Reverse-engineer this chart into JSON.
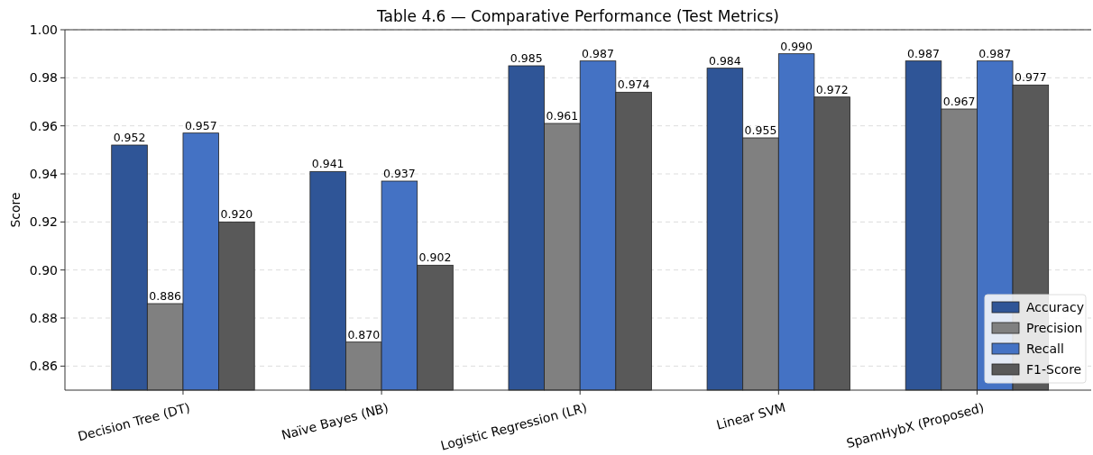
{
  "chart_data": {
    "type": "bar",
    "title": "Table 4.6 — Comparative Performance (Test Metrics)",
    "ylabel": "Score",
    "categories": [
      "Decision Tree (DT)",
      "Naïve Bayes (NB)",
      "Logistic Regression (LR)",
      "Linear SVM",
      "SpamHybX (Proposed)"
    ],
    "series": [
      {
        "name": "Accuracy",
        "color": "#2f5597",
        "values": [
          0.952,
          0.941,
          0.985,
          0.984,
          0.987
        ],
        "value_labels": [
          "0.952",
          "0.941",
          "0.985",
          "0.984",
          "0.987"
        ]
      },
      {
        "name": "Precision",
        "color": "#808080",
        "values": [
          0.886,
          0.87,
          0.961,
          0.955,
          0.967
        ],
        "value_labels": [
          "0.886",
          "0.870",
          "0.961",
          "0.955",
          "0.967"
        ]
      },
      {
        "name": "Recall",
        "color": "#4472c4",
        "values": [
          0.957,
          0.937,
          0.987,
          0.99,
          0.987
        ],
        "value_labels": [
          "0.957",
          "0.937",
          "0.987",
          "0.990",
          "0.987"
        ]
      },
      {
        "name": "F1-Score",
        "color": "#595959",
        "values": [
          0.92,
          0.902,
          0.974,
          0.972,
          0.977
        ],
        "value_labels": [
          "0.920",
          "0.902",
          "0.974",
          "0.972",
          "0.977"
        ]
      }
    ],
    "ylim": [
      0.85,
      1.0
    ],
    "yticks": [
      {
        "value": 0.86,
        "label": "0.86"
      },
      {
        "value": 0.88,
        "label": "0.88"
      },
      {
        "value": 0.9,
        "label": "0.90"
      },
      {
        "value": 0.92,
        "label": "0.92"
      },
      {
        "value": 0.94,
        "label": "0.94"
      },
      {
        "value": 0.96,
        "label": "0.96"
      },
      {
        "value": 0.98,
        "label": "0.98"
      },
      {
        "value": 1.0,
        "label": "1.00"
      }
    ],
    "grid": "y",
    "legend": "bottom right"
  }
}
